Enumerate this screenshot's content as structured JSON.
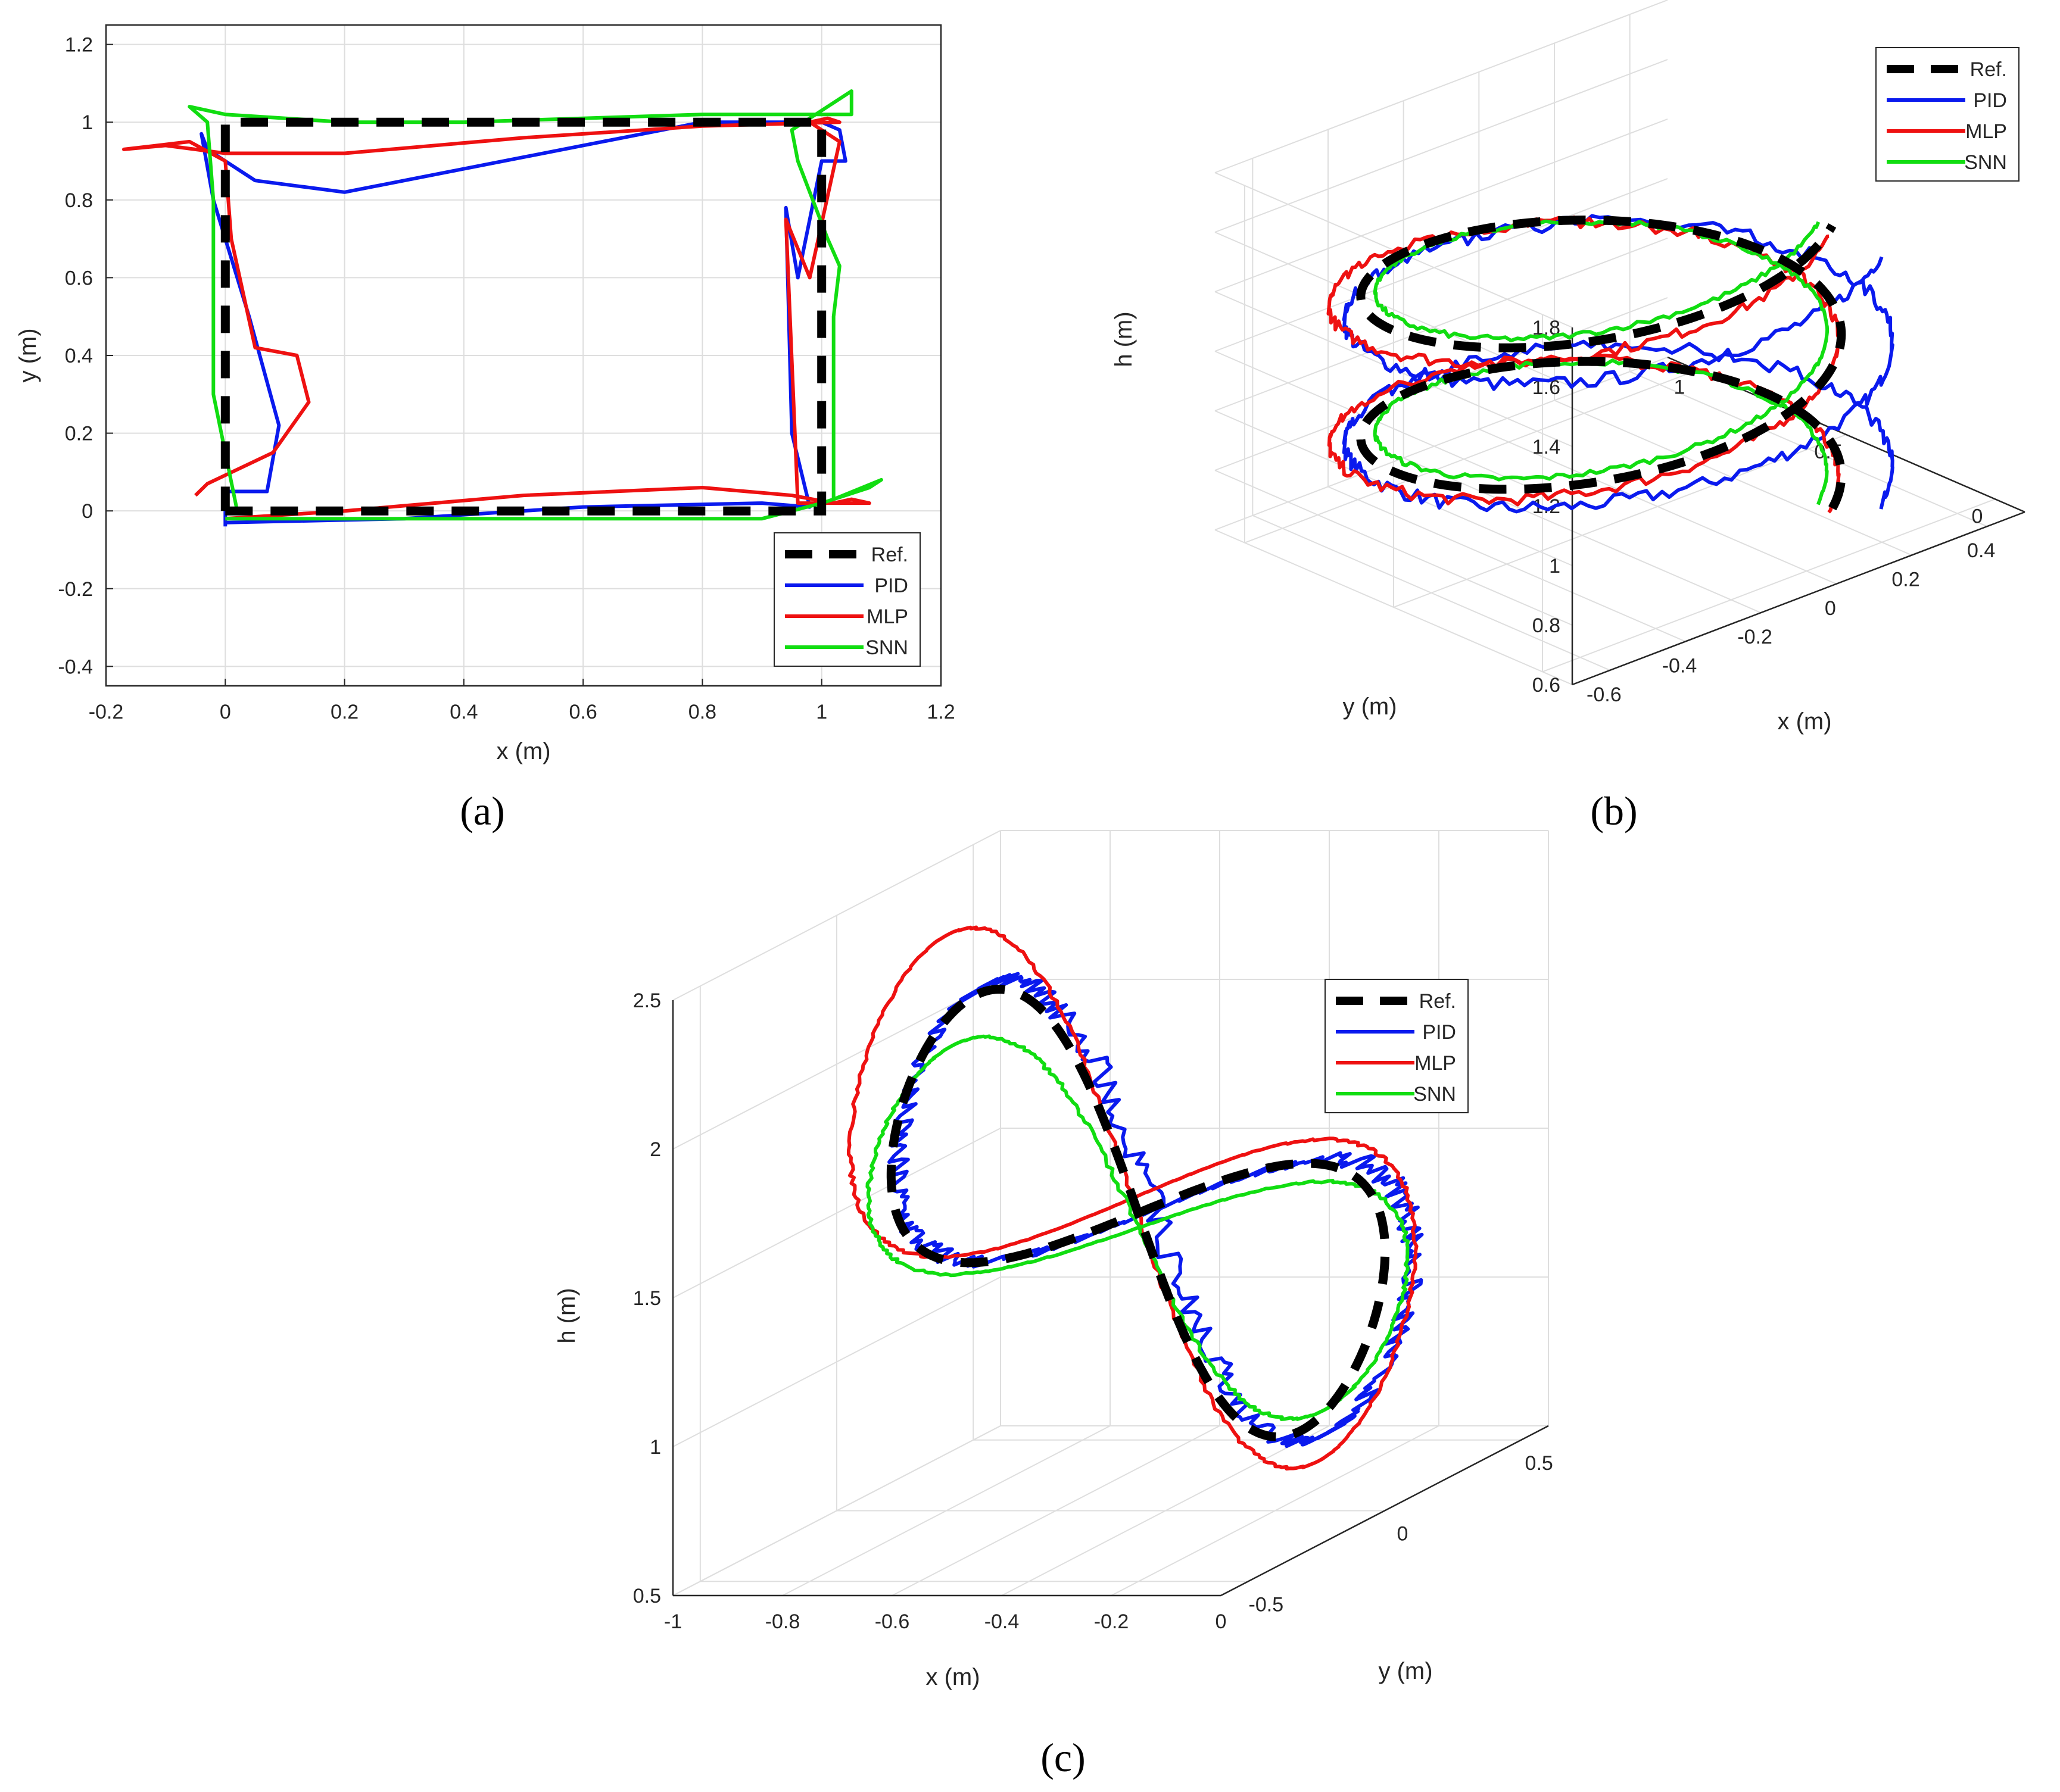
{
  "colors": {
    "ref": "#000000",
    "pid": "#0a1aee",
    "mlp": "#ee1111",
    "snn": "#11dd11",
    "grid": "#dedede",
    "axis": "#262626"
  },
  "chart_data": [
    {
      "id": "a",
      "panel_label": "(a)",
      "type": "line",
      "xlabel": "x (m)",
      "ylabel": "y (m)",
      "xlim": [
        -0.2,
        1.2
      ],
      "ylim": [
        -0.45,
        1.25
      ],
      "xticks": [
        -0.2,
        0,
        0.2,
        0.4,
        0.6,
        0.8,
        1,
        1.2
      ],
      "xtick_labels": [
        "-0.2",
        "0",
        "0.2",
        "0.4",
        "0.6",
        "0.8",
        "1",
        "1.2"
      ],
      "yticks": [
        -0.4,
        -0.2,
        0,
        0.2,
        0.4,
        0.6,
        0.8,
        1,
        1.2
      ],
      "ytick_labels": [
        "-0.4",
        "-0.2",
        "0",
        "0.2",
        "0.4",
        "0.6",
        "0.8",
        "1",
        "1.2"
      ],
      "grid": true,
      "legend_position": "bottom-right",
      "legend": [
        "Ref.",
        "PID",
        "MLP",
        "SNN"
      ],
      "series": [
        {
          "name": "Ref.",
          "x": [
            0,
            1,
            1,
            0,
            0
          ],
          "y": [
            0,
            0,
            1,
            1,
            0
          ]
        },
        {
          "name": "PID",
          "x": [
            0.0,
            0.3,
            0.6,
            0.9,
            0.98,
            0.95,
            0.94,
            0.96,
            1.0,
            1.04,
            1.03,
            1.0,
            0.98,
            0.8,
            0.4,
            0.2,
            0.05,
            -0.03,
            -0.04,
            -0.02,
            0.04,
            0.09,
            0.07,
            0.0,
            0.0
          ],
          "y": [
            -0.03,
            -0.02,
            0.01,
            0.02,
            0.01,
            0.2,
            0.78,
            0.6,
            0.9,
            0.9,
            0.98,
            1.0,
            1.0,
            1.0,
            0.88,
            0.82,
            0.85,
            0.93,
            0.97,
            0.8,
            0.5,
            0.22,
            0.05,
            0.05,
            -0.04
          ]
        },
        {
          "name": "MLP",
          "x": [
            0.0,
            0.2,
            0.5,
            0.8,
            0.95,
            1.02,
            1.05,
            1.08,
            0.96,
            0.94,
            0.98,
            1.03,
            0.98,
            1.01,
            1.03,
            0.8,
            0.5,
            0.2,
            0.0,
            -0.1,
            -0.17,
            -0.06,
            0.0,
            0.01,
            0.05,
            0.12,
            0.14,
            0.08,
            -0.03,
            -0.05
          ],
          "y": [
            -0.02,
            0.0,
            0.04,
            0.06,
            0.04,
            0.02,
            0.03,
            0.02,
            0.02,
            0.75,
            0.6,
            0.95,
            1.0,
            1.01,
            1.0,
            0.99,
            0.96,
            0.92,
            0.92,
            0.94,
            0.93,
            0.95,
            0.9,
            0.7,
            0.42,
            0.4,
            0.28,
            0.15,
            0.07,
            0.04
          ]
        },
        {
          "name": "SNN",
          "x": [
            0.0,
            0.2,
            0.6,
            0.9,
            1.0,
            1.08,
            1.1,
            1.02,
            1.02,
            1.03,
            1.01,
            0.96,
            0.95,
            1.05,
            1.05,
            1.0,
            0.8,
            0.4,
            0.2,
            0.0,
            -0.06,
            -0.03,
            -0.02,
            -0.02,
            0.0,
            0.02
          ],
          "y": [
            -0.02,
            -0.02,
            -0.02,
            -0.02,
            0.02,
            0.06,
            0.08,
            0.03,
            0.5,
            0.63,
            0.7,
            0.9,
            0.98,
            1.08,
            1.02,
            1.02,
            1.02,
            1.0,
            1.0,
            1.02,
            1.04,
            1.0,
            0.8,
            0.3,
            0.15,
            0.0
          ]
        }
      ]
    },
    {
      "id": "b",
      "panel_label": "(b)",
      "type": "line",
      "xlabel": "x (m)",
      "ylabel": "y (m)",
      "zlabel": "h (m)",
      "xlim": [
        -0.7,
        0.5
      ],
      "ylim": [
        -0.1,
        1.1
      ],
      "zlim": [
        0.6,
        1.8
      ],
      "xticks": [
        -0.6,
        -0.4,
        -0.2,
        0,
        0.2,
        0.4
      ],
      "xtick_labels": [
        "-0.6",
        "-0.4",
        "-0.2",
        "0",
        "0.2",
        "0.4"
      ],
      "yticks": [
        0,
        0.5,
        1
      ],
      "ytick_labels": [
        "0",
        "0.5",
        "1"
      ],
      "zticks": [
        0.6,
        0.8,
        1,
        1.2,
        1.4,
        1.6,
        1.8
      ],
      "ztick_labels": [
        "0.6",
        "0.8",
        "1",
        "1.2",
        "1.4",
        "1.6",
        "1.8"
      ],
      "grid": true,
      "legend_position": "top-right",
      "legend": [
        "Ref.",
        "PID",
        "MLP",
        "SNN"
      ],
      "series": [
        {
          "name": "Ref.",
          "kind": "helix",
          "center": [
            -0.15,
            0.5
          ],
          "radius": 0.5,
          "h_start": 0.7,
          "h_end": 1.65,
          "turns": 2
        },
        {
          "name": "PID",
          "kind": "helix",
          "center": [
            -0.12,
            0.48
          ],
          "radius": 0.57,
          "h_start": 0.72,
          "h_end": 1.55,
          "turns": 2,
          "noise": 0.025
        },
        {
          "name": "MLP",
          "kind": "helix",
          "center": [
            -0.18,
            0.52
          ],
          "radius": 0.53,
          "h_start": 0.7,
          "h_end": 1.62,
          "turns": 2,
          "noise": 0.02
        },
        {
          "name": "SNN",
          "kind": "helix",
          "center": [
            -0.15,
            0.5
          ],
          "radius": 0.47,
          "h_start": 0.72,
          "h_end": 1.66,
          "turns": 2,
          "noise": 0.01
        }
      ]
    },
    {
      "id": "c",
      "panel_label": "(c)",
      "type": "line",
      "xlabel": "x (m)",
      "ylabel": "y (m)",
      "zlabel": "h (m)",
      "xlim": [
        -1.0,
        0.0
      ],
      "ylim": [
        -0.6,
        0.6
      ],
      "zlim": [
        0.5,
        2.5
      ],
      "xticks": [
        -1,
        -0.8,
        -0.6,
        -0.4,
        -0.2,
        0
      ],
      "xtick_labels": [
        "-1",
        "-0.8",
        "-0.6",
        "-0.4",
        "-0.2",
        "0"
      ],
      "yticks": [
        -0.5,
        0,
        0.5
      ],
      "ytick_labels": [
        "-0.5",
        "0",
        "0.5"
      ],
      "zticks": [
        0.5,
        1,
        1.5,
        2,
        2.5
      ],
      "ztick_labels": [
        "0.5",
        "1",
        "1.5",
        "2",
        "2.5"
      ],
      "grid": true,
      "legend_position": "top-right",
      "legend": [
        "Ref.",
        "PID",
        "MLP",
        "SNN"
      ],
      "series": [
        {
          "name": "Ref.",
          "kind": "figure8",
          "center_x": -0.45,
          "center_y": 0.0,
          "center_h": 1.5,
          "ax": 0.42,
          "ay": 0.35,
          "ah": 0.7
        },
        {
          "name": "PID",
          "kind": "figure8",
          "center_x": -0.43,
          "center_y": 0.02,
          "center_h": 1.5,
          "ax": 0.44,
          "ay": 0.36,
          "ah": 0.72,
          "noise": 0.03
        },
        {
          "name": "MLP",
          "kind": "figure8",
          "center_x": -0.46,
          "center_y": 0.0,
          "center_h": 1.55,
          "ax": 0.48,
          "ay": 0.4,
          "ah": 0.85,
          "noise": 0.005
        },
        {
          "name": "SNN",
          "kind": "figure8",
          "center_x": -0.45,
          "center_y": 0.0,
          "center_h": 1.45,
          "ax": 0.46,
          "ay": 0.37,
          "ah": 0.58,
          "noise": 0.005
        }
      ]
    }
  ]
}
